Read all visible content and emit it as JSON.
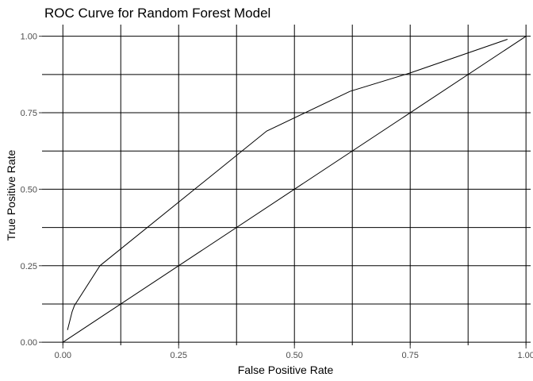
{
  "chart_data": {
    "type": "line",
    "title": "ROC Curve for Random Forest Model",
    "xlabel": "False Positive Rate",
    "ylabel": "True Positive Rate",
    "xlim": [
      0,
      1
    ],
    "ylim": [
      0,
      1
    ],
    "x_ticks": [
      "0.00",
      "0.25",
      "0.50",
      "0.75",
      "1.00"
    ],
    "y_ticks": [
      "0.00",
      "0.25",
      "0.50",
      "0.75",
      "1.00"
    ],
    "grid": true,
    "series": [
      {
        "x": [
          0.01,
          0.02,
          0.025,
          0.08,
          0.44,
          0.62,
          0.75,
          0.96
        ],
        "y": [
          0.04,
          0.1,
          0.12,
          0.25,
          0.69,
          0.82,
          0.88,
          0.99
        ]
      },
      {
        "x": [
          0,
          1
        ],
        "y": [
          0,
          1
        ]
      }
    ],
    "colors": {
      "line": "#000000",
      "grid": "#000000",
      "panel": "#ffffff"
    }
  }
}
